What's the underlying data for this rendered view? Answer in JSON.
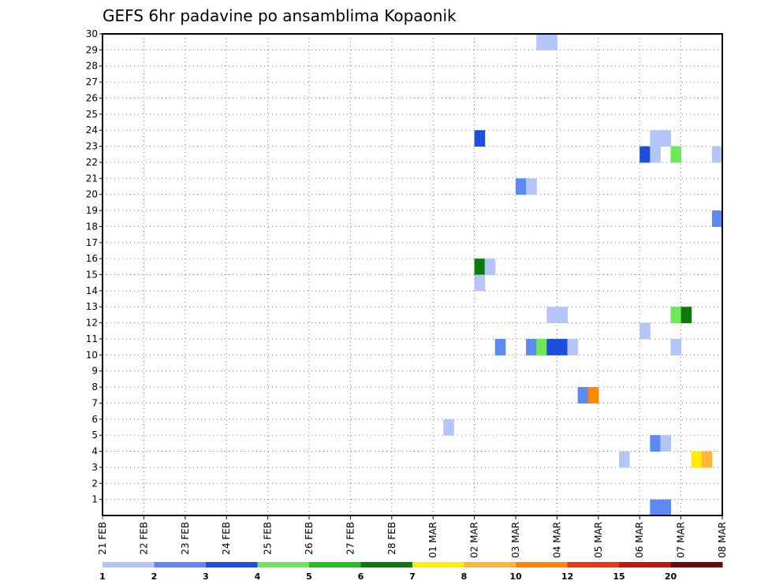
{
  "chart_data": {
    "type": "heatmap",
    "title": "GEFS 6hr padavine po ansamblima Kopaonik",
    "y_ticks": [
      "1",
      "2",
      "3",
      "4",
      "5",
      "6",
      "7",
      "8",
      "9",
      "10",
      "11",
      "12",
      "13",
      "14",
      "15",
      "16",
      "17",
      "18",
      "19",
      "20",
      "21",
      "22",
      "23",
      "24",
      "25",
      "26",
      "27",
      "28",
      "29",
      "30"
    ],
    "x_ticks": [
      "21 FEB",
      "22 FEB",
      "23 FEB",
      "24 FEB",
      "25 FEB",
      "26 FEB",
      "27 FEB",
      "28 FEB",
      "01 MAR",
      "02 MAR",
      "03 MAR",
      "04 MAR",
      "05 MAR",
      "06 MAR",
      "07 MAR",
      "08 MAR"
    ],
    "ylim": [
      0,
      30
    ],
    "xlim": [
      0,
      60
    ],
    "x_unit": "6-hour steps from 21 FEB 00Z",
    "grid": true,
    "colorbar": {
      "colors": [
        "#b4c6f8",
        "#5c8af0",
        "#1e4fdc",
        "#6ce85a",
        "#22c21c",
        "#0c7a0c",
        "#ffee00",
        "#ffb43a",
        "#ff8800",
        "#e83a10",
        "#c01a10",
        "#6a0a0a"
      ],
      "labels": [
        "1",
        "2",
        "3",
        "4",
        "5",
        "6",
        "7",
        "8",
        "10",
        "12",
        "15",
        "20"
      ]
    },
    "cells": [
      {
        "x": 36,
        "y": 24,
        "c": 2
      },
      {
        "x": 36,
        "y": 16,
        "c": 5
      },
      {
        "x": 37,
        "y": 16,
        "c": 0
      },
      {
        "x": 36,
        "y": 15,
        "c": 0
      },
      {
        "x": 33,
        "y": 6,
        "c": 0
      },
      {
        "x": 38,
        "y": 11,
        "c": 1
      },
      {
        "x": 40,
        "y": 21,
        "c": 1
      },
      {
        "x": 41,
        "y": 21,
        "c": 0
      },
      {
        "x": 41,
        "y": 11,
        "c": 1
      },
      {
        "x": 42,
        "y": 11,
        "c": 3
      },
      {
        "x": 43,
        "y": 11,
        "c": 2
      },
      {
        "x": 44,
        "y": 11,
        "c": 2
      },
      {
        "x": 45,
        "y": 11,
        "c": 0
      },
      {
        "x": 43,
        "y": 13,
        "c": 0
      },
      {
        "x": 44,
        "y": 13,
        "c": 0
      },
      {
        "x": 42,
        "y": 30,
        "c": 0
      },
      {
        "x": 43,
        "y": 30,
        "c": 0
      },
      {
        "x": 46,
        "y": 8,
        "c": 1
      },
      {
        "x": 47,
        "y": 8,
        "c": 8
      },
      {
        "x": 50,
        "y": 4,
        "c": 0
      },
      {
        "x": 52,
        "y": 23,
        "c": 2
      },
      {
        "x": 53,
        "y": 23,
        "c": 0
      },
      {
        "x": 53,
        "y": 24,
        "c": 0
      },
      {
        "x": 54,
        "y": 24,
        "c": 0
      },
      {
        "x": 55,
        "y": 23,
        "c": 3
      },
      {
        "x": 59,
        "y": 23,
        "c": 0
      },
      {
        "x": 59,
        "y": 19,
        "c": 1
      },
      {
        "x": 52,
        "y": 12,
        "c": 0
      },
      {
        "x": 55,
        "y": 11,
        "c": 0
      },
      {
        "x": 55,
        "y": 13,
        "c": 3
      },
      {
        "x": 56,
        "y": 13,
        "c": 5
      },
      {
        "x": 53,
        "y": 5,
        "c": 1
      },
      {
        "x": 54,
        "y": 5,
        "c": 0
      },
      {
        "x": 57,
        "y": 4,
        "c": 6
      },
      {
        "x": 58,
        "y": 4,
        "c": 7
      },
      {
        "x": 53,
        "y": 1,
        "c": 1
      },
      {
        "x": 54,
        "y": 1,
        "c": 1
      }
    ]
  }
}
